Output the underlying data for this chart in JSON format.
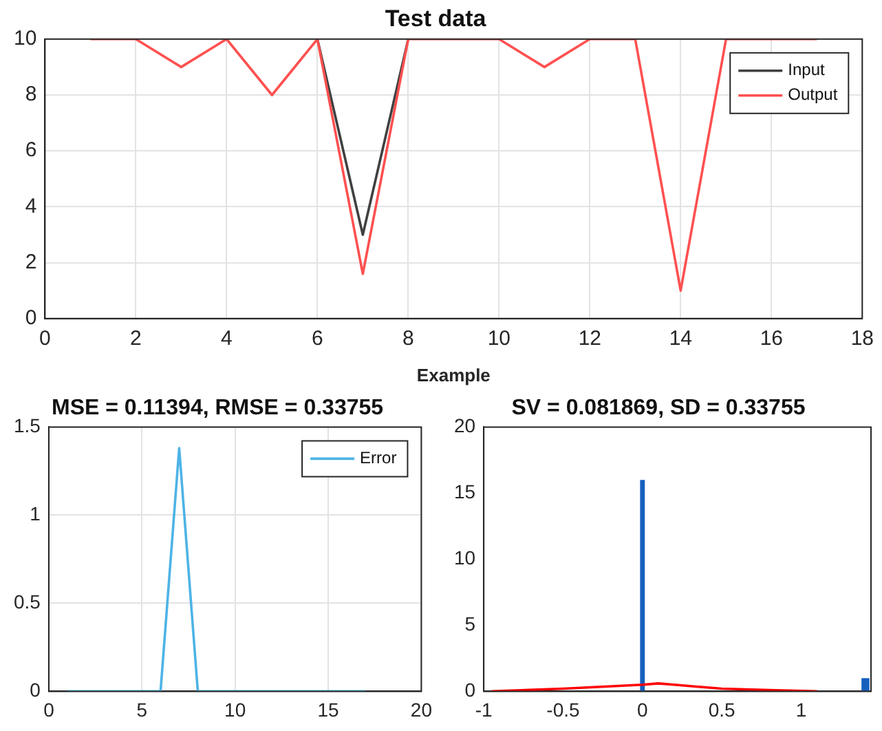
{
  "chart_data": [
    {
      "type": "line",
      "title": "Test data",
      "xlabel": "Example",
      "x": [
        1,
        2,
        3,
        4,
        5,
        6,
        7,
        8,
        9,
        10,
        11,
        12,
        13,
        14,
        15,
        16,
        17
      ],
      "series": [
        {
          "name": "Input",
          "color": "#404040",
          "values": [
            null,
            null,
            null,
            null,
            null,
            10,
            3,
            10,
            null,
            null,
            null,
            null,
            null,
            null,
            null,
            null,
            null
          ]
        },
        {
          "name": "Output",
          "color": "#ff5050",
          "values": [
            10,
            10,
            9,
            10,
            8,
            10,
            1.6,
            10,
            10,
            10,
            9,
            10,
            10,
            1,
            10,
            10,
            10
          ]
        }
      ],
      "xlim": [
        0,
        18
      ],
      "xticks": [
        0,
        2,
        4,
        6,
        8,
        10,
        12,
        14,
        16,
        18
      ],
      "ylim": [
        0,
        10
      ],
      "yticks": [
        0,
        2,
        4,
        6,
        8,
        10
      ],
      "grid": true,
      "legend": "top right",
      "marker": "none"
    },
    {
      "type": "line",
      "title": "MSE = 0.11394, RMSE = 0.33755",
      "x": [
        1,
        2,
        3,
        4,
        5,
        6,
        7,
        8,
        9,
        10,
        11,
        12,
        13,
        14,
        15,
        16,
        17
      ],
      "series": [
        {
          "name": "Error",
          "color": "#4db3e6",
          "values": [
            0,
            0,
            0,
            0,
            0,
            0,
            1.38,
            0,
            0,
            0,
            0,
            0,
            0,
            0,
            0,
            0,
            0
          ]
        }
      ],
      "xlim": [
        0,
        20
      ],
      "xticks": [
        0,
        5,
        10,
        15,
        20
      ],
      "ylim": [
        0,
        1.5
      ],
      "yticks": [
        0,
        0.5,
        1,
        1.5
      ],
      "grid": true,
      "legend": "top right",
      "marker": "none"
    },
    {
      "type": "histogram",
      "title": "SV = 0.081869, SD = 0.33755",
      "bins": [
        -0.015,
        0.015,
        1.38,
        1.43
      ],
      "values": [
        16,
        0,
        1
      ],
      "color": "#1560bd",
      "series": [
        {
          "type": "line",
          "color": "#ff0000",
          "x": [
            -0.95,
            -0.5,
            0,
            0.1,
            0.2,
            0.5,
            0.8,
            1.1
          ],
          "values": [
            0,
            0.2,
            0.5,
            0.6,
            0.5,
            0.2,
            0.1,
            0
          ]
        }
      ],
      "xlim": [
        -1,
        1.44
      ],
      "xticks": [
        -1,
        -0.5,
        0,
        0.5,
        1
      ],
      "ylim": [
        0,
        20
      ],
      "yticks": [
        0,
        5,
        10,
        15,
        20
      ],
      "grid": false,
      "legend": false,
      "marker": "none"
    }
  ]
}
